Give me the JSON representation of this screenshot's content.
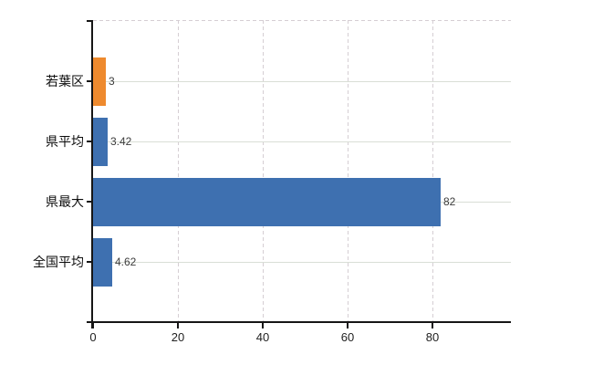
{
  "chart_data": {
    "type": "bar",
    "orientation": "horizontal",
    "title": "",
    "xlabel": "",
    "ylabel": "",
    "categories": [
      "若葉区",
      "県平均",
      "県最大",
      "全国平均"
    ],
    "values": [
      3,
      3.42,
      82,
      4.62
    ],
    "value_labels": [
      "3",
      "3.42",
      "82",
      "4.62"
    ],
    "bar_colors": [
      "#ee8a2e",
      "#3e70b0",
      "#3e70b0",
      "#3e70b0"
    ],
    "x_ticks": [
      0,
      20,
      40,
      60,
      80
    ],
    "x_tick_labels": [
      "0",
      "20",
      "40",
      "60",
      "80"
    ],
    "xlim": [
      0,
      98.5
    ],
    "grid": true,
    "legend": false,
    "colors": {
      "orange": "#ee8a2e",
      "blue": "#3e70b0",
      "gridline_horizontal": "#d9ded6",
      "gridline_vertical": "#d5ced3",
      "axis": "#161616",
      "value_label": "#3c3c3c",
      "background": "#ffffff"
    }
  }
}
